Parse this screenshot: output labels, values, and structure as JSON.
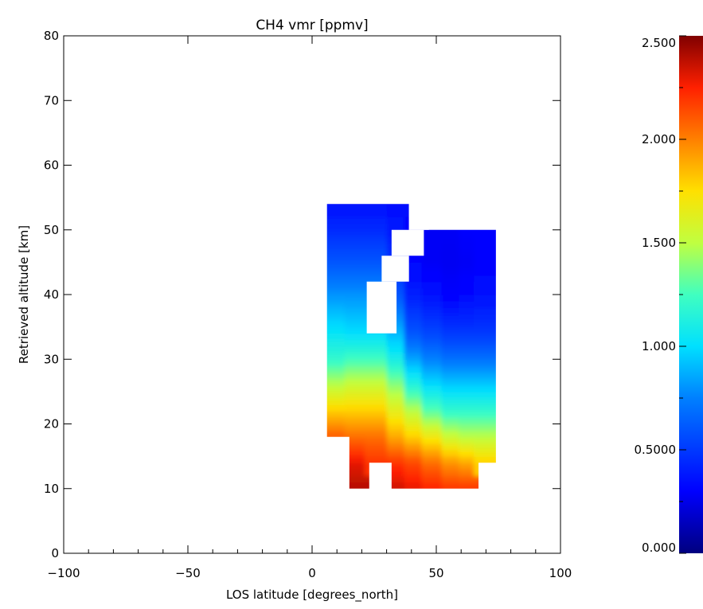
{
  "chart_data": {
    "type": "heatmap",
    "title": "CH4 vmr [ppmv]",
    "xlabel": "LOS latitude [degrees_north]",
    "ylabel": "Retrieved altitude [km]",
    "xlim": [
      -100,
      100
    ],
    "ylim": [
      0,
      80
    ],
    "x_ticks": [
      -100,
      -50,
      0,
      50,
      100
    ],
    "x_tick_labels": [
      "−100",
      "−50",
      "0",
      "50",
      "100"
    ],
    "y_ticks": [
      0,
      10,
      20,
      30,
      40,
      50,
      60,
      70,
      80
    ],
    "y_tick_labels": [
      "0",
      "10",
      "20",
      "30",
      "40",
      "50",
      "60",
      "70",
      "80"
    ],
    "colorbar": {
      "range": [
        0.0,
        2.5
      ],
      "ticks": [
        0.0,
        0.5,
        1.0,
        1.5,
        2.0,
        2.5
      ],
      "tick_labels": [
        "0.000",
        "0.5000",
        "1.000",
        "1.500",
        "2.000",
        "2.500"
      ],
      "colormap": "rainbow"
    },
    "columns": [
      {
        "lat_from": 6,
        "lat_to": 15,
        "alt_from": 18,
        "alt_to": 54,
        "profile": [
          [
            18,
            2.1
          ],
          [
            22,
            1.8
          ],
          [
            26,
            1.5
          ],
          [
            30,
            1.2
          ],
          [
            35,
            1.0
          ],
          [
            40,
            0.8
          ],
          [
            45,
            0.6
          ],
          [
            50,
            0.45
          ],
          [
            54,
            0.35
          ]
        ]
      },
      {
        "lat_from": 15,
        "lat_to": 23,
        "alt_from": 10,
        "alt_to": 54,
        "profile": [
          [
            10,
            2.4
          ],
          [
            14,
            2.3
          ],
          [
            18,
            2.05
          ],
          [
            22,
            1.8
          ],
          [
            26,
            1.55
          ],
          [
            30,
            1.25
          ],
          [
            34,
            1.0
          ],
          [
            40,
            0.8
          ],
          [
            45,
            0.6
          ],
          [
            50,
            0.45
          ],
          [
            54,
            0.35
          ]
        ]
      },
      {
        "lat_from": 23,
        "lat_to": 32,
        "alt_from": 14,
        "alt_to": 54,
        "profile": [
          [
            14,
            2.2
          ],
          [
            18,
            2.05
          ],
          [
            22,
            1.8
          ],
          [
            26,
            1.55
          ],
          [
            30,
            1.25
          ],
          [
            34,
            1.0
          ],
          [
            40,
            0.8
          ],
          [
            45,
            0.6
          ],
          [
            50,
            0.45
          ],
          [
            54,
            0.35
          ]
        ]
      },
      {
        "lat_from": 32,
        "lat_to": 39,
        "alt_from": 10,
        "alt_to": 54,
        "profile": [
          [
            10,
            2.35
          ],
          [
            14,
            2.2
          ],
          [
            18,
            1.9
          ],
          [
            22,
            1.65
          ],
          [
            26,
            1.4
          ],
          [
            30,
            1.1
          ],
          [
            34,
            0.9
          ],
          [
            40,
            0.6
          ],
          [
            45,
            0.45
          ],
          [
            50,
            0.38
          ],
          [
            54,
            0.35
          ]
        ]
      },
      {
        "lat_from": 39,
        "lat_to": 46,
        "alt_from": 10,
        "alt_to": 50,
        "profile": [
          [
            10,
            2.3
          ],
          [
            14,
            2.15
          ],
          [
            18,
            1.8
          ],
          [
            22,
            1.5
          ],
          [
            26,
            1.15
          ],
          [
            30,
            0.85
          ],
          [
            34,
            0.6
          ],
          [
            40,
            0.4
          ],
          [
            45,
            0.32
          ],
          [
            50,
            0.3
          ]
        ]
      },
      {
        "lat_from": 46,
        "lat_to": 54,
        "alt_from": 10,
        "alt_to": 50,
        "profile": [
          [
            10,
            2.25
          ],
          [
            14,
            2.05
          ],
          [
            18,
            1.7
          ],
          [
            22,
            1.3
          ],
          [
            26,
            1.0
          ],
          [
            30,
            0.75
          ],
          [
            34,
            0.55
          ],
          [
            40,
            0.35
          ],
          [
            45,
            0.28
          ],
          [
            50,
            0.28
          ]
        ]
      },
      {
        "lat_from": 54,
        "lat_to": 61,
        "alt_from": 10,
        "alt_to": 50,
        "profile": [
          [
            10,
            2.2
          ],
          [
            14,
            1.95
          ],
          [
            18,
            1.55
          ],
          [
            22,
            1.2
          ],
          [
            26,
            0.95
          ],
          [
            30,
            0.7
          ],
          [
            34,
            0.5
          ],
          [
            40,
            0.3
          ],
          [
            45,
            0.27
          ],
          [
            50,
            0.28
          ]
        ]
      },
      {
        "lat_from": 61,
        "lat_to": 67,
        "alt_from": 10,
        "alt_to": 50,
        "profile": [
          [
            10,
            2.2
          ],
          [
            14,
            1.9
          ],
          [
            18,
            1.5
          ],
          [
            22,
            1.2
          ],
          [
            26,
            0.95
          ],
          [
            30,
            0.7
          ],
          [
            34,
            0.5
          ],
          [
            40,
            0.32
          ],
          [
            45,
            0.28
          ],
          [
            50,
            0.3
          ]
        ]
      },
      {
        "lat_from": 67,
        "lat_to": 74,
        "alt_from": 14,
        "alt_to": 50,
        "profile": [
          [
            14,
            1.8
          ],
          [
            18,
            1.5
          ],
          [
            22,
            1.2
          ],
          [
            26,
            0.95
          ],
          [
            30,
            0.7
          ],
          [
            34,
            0.5
          ],
          [
            40,
            0.35
          ],
          [
            45,
            0.3
          ],
          [
            50,
            0.3
          ]
        ]
      }
    ],
    "gaps": [
      {
        "lat_from": 22,
        "lat_to": 34,
        "alt_from": 34,
        "alt_to": 42
      },
      {
        "lat_from": 28,
        "lat_to": 39,
        "alt_from": 42,
        "alt_to": 46
      },
      {
        "lat_from": 32,
        "lat_to": 45,
        "alt_from": 46,
        "alt_to": 50
      },
      {
        "lat_from": 39,
        "lat_to": 47,
        "alt_from": 50,
        "alt_to": 54
      }
    ]
  }
}
